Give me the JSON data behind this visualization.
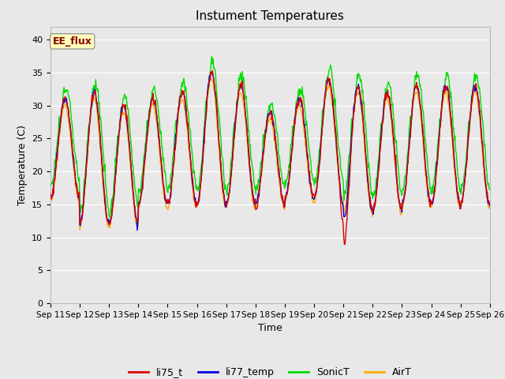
{
  "title": "Instument Temperatures",
  "xlabel": "Time",
  "ylabel": "Temperature (C)",
  "ylim": [
    0,
    42
  ],
  "yticks": [
    0,
    5,
    10,
    15,
    20,
    25,
    30,
    35,
    40
  ],
  "fig_bg_color": "#e8e8e8",
  "plot_bg_color": "#e8e8e8",
  "series_colors": {
    "li75_t": "#dd0000",
    "li77_temp": "#0000dd",
    "SonicT": "#00dd00",
    "AirT": "#ffaa00"
  },
  "annotation_text": "EE_flux",
  "annotation_color": "#880000",
  "annotation_bg": "#ffffbb",
  "annotation_border": "#999999",
  "n_days": 15,
  "start_day": 11,
  "pts_per_day": 48
}
